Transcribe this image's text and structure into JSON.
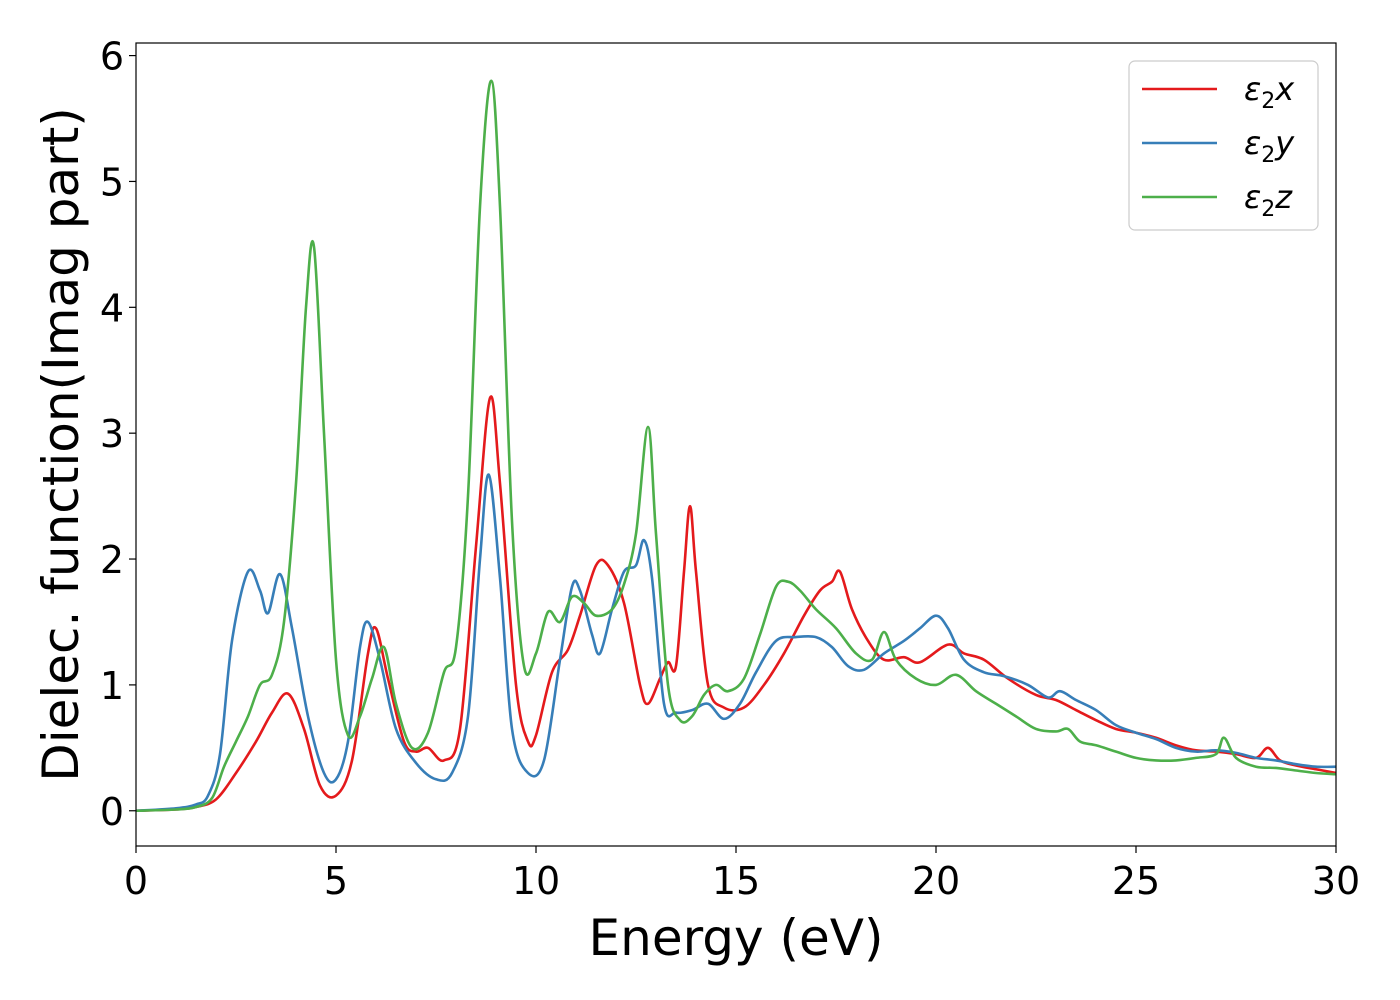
{
  "chart_data": {
    "type": "line",
    "xlabel": "Energy (eV)",
    "ylabel": "Dielec. function(Imag part)",
    "xlim": [
      0,
      30
    ],
    "ylim": [
      -0.28,
      6.1
    ],
    "xticks": [
      0,
      5,
      10,
      15,
      20,
      25,
      30
    ],
    "yticks": [
      0,
      1,
      2,
      3,
      4,
      5,
      6
    ],
    "legend": {
      "position": "top-right"
    },
    "grid": false,
    "series": [
      {
        "name": "ε2x",
        "name_base": "ε",
        "name_sub": "2",
        "name_tail": "x",
        "color": "#e41a1c",
        "points": [
          [
            0,
            0
          ],
          [
            1,
            0.01
          ],
          [
            1.5,
            0.03
          ],
          [
            2,
            0.09
          ],
          [
            2.5,
            0.3
          ],
          [
            3,
            0.55
          ],
          [
            3.4,
            0.78
          ],
          [
            3.8,
            0.93
          ],
          [
            4.2,
            0.65
          ],
          [
            4.6,
            0.2
          ],
          [
            5,
            0.12
          ],
          [
            5.4,
            0.4
          ],
          [
            5.8,
            1.25
          ],
          [
            6,
            1.45
          ],
          [
            6.3,
            1.05
          ],
          [
            6.7,
            0.55
          ],
          [
            7,
            0.47
          ],
          [
            7.3,
            0.5
          ],
          [
            7.7,
            0.4
          ],
          [
            8.1,
            0.65
          ],
          [
            8.5,
            2.1
          ],
          [
            8.85,
            3.28
          ],
          [
            9.1,
            2.6
          ],
          [
            9.5,
            1.0
          ],
          [
            9.8,
            0.55
          ],
          [
            10,
            0.6
          ],
          [
            10.4,
            1.1
          ],
          [
            10.8,
            1.28
          ],
          [
            11.1,
            1.55
          ],
          [
            11.5,
            1.95
          ],
          [
            11.8,
            1.95
          ],
          [
            12.2,
            1.65
          ],
          [
            12.6,
            1.0
          ],
          [
            12.8,
            0.85
          ],
          [
            13.1,
            1.05
          ],
          [
            13.3,
            1.18
          ],
          [
            13.5,
            1.15
          ],
          [
            13.7,
            1.9
          ],
          [
            13.85,
            2.42
          ],
          [
            14,
            1.9
          ],
          [
            14.3,
            1.0
          ],
          [
            14.7,
            0.82
          ],
          [
            15.2,
            0.82
          ],
          [
            15.7,
            1.0
          ],
          [
            16.2,
            1.25
          ],
          [
            16.7,
            1.55
          ],
          [
            17.1,
            1.75
          ],
          [
            17.4,
            1.82
          ],
          [
            17.6,
            1.9
          ],
          [
            17.9,
            1.6
          ],
          [
            18.3,
            1.35
          ],
          [
            18.7,
            1.2
          ],
          [
            19.2,
            1.22
          ],
          [
            19.6,
            1.18
          ],
          [
            20.3,
            1.32
          ],
          [
            20.7,
            1.25
          ],
          [
            21.2,
            1.2
          ],
          [
            21.8,
            1.05
          ],
          [
            22.5,
            0.92
          ],
          [
            23,
            0.88
          ],
          [
            23.5,
            0.8
          ],
          [
            24,
            0.72
          ],
          [
            24.5,
            0.65
          ],
          [
            25,
            0.62
          ],
          [
            25.5,
            0.58
          ],
          [
            26,
            0.52
          ],
          [
            26.5,
            0.48
          ],
          [
            27,
            0.47
          ],
          [
            27.5,
            0.45
          ],
          [
            28,
            0.42
          ],
          [
            28.3,
            0.5
          ],
          [
            28.6,
            0.4
          ],
          [
            29,
            0.36
          ],
          [
            29.5,
            0.33
          ],
          [
            30,
            0.3
          ]
        ]
      },
      {
        "name": "ε2y",
        "name_base": "ε",
        "name_sub": "2",
        "name_tail": "y",
        "color": "#377eb8",
        "points": [
          [
            0,
            0
          ],
          [
            1,
            0.02
          ],
          [
            1.5,
            0.05
          ],
          [
            1.8,
            0.12
          ],
          [
            2.1,
            0.45
          ],
          [
            2.4,
            1.35
          ],
          [
            2.8,
            1.9
          ],
          [
            3.1,
            1.75
          ],
          [
            3.3,
            1.57
          ],
          [
            3.6,
            1.88
          ],
          [
            3.9,
            1.45
          ],
          [
            4.3,
            0.75
          ],
          [
            4.7,
            0.3
          ],
          [
            5,
            0.25
          ],
          [
            5.3,
            0.55
          ],
          [
            5.6,
            1.3
          ],
          [
            5.8,
            1.5
          ],
          [
            6.1,
            1.2
          ],
          [
            6.5,
            0.65
          ],
          [
            7,
            0.38
          ],
          [
            7.5,
            0.25
          ],
          [
            7.9,
            0.3
          ],
          [
            8.3,
            0.75
          ],
          [
            8.6,
            2.0
          ],
          [
            8.82,
            2.67
          ],
          [
            9.1,
            1.85
          ],
          [
            9.4,
            0.65
          ],
          [
            9.8,
            0.3
          ],
          [
            10.2,
            0.4
          ],
          [
            10.6,
            1.2
          ],
          [
            10.9,
            1.78
          ],
          [
            11.1,
            1.75
          ],
          [
            11.4,
            1.4
          ],
          [
            11.6,
            1.25
          ],
          [
            11.9,
            1.6
          ],
          [
            12.2,
            1.9
          ],
          [
            12.5,
            1.95
          ],
          [
            12.7,
            2.15
          ],
          [
            12.9,
            1.85
          ],
          [
            13.2,
            0.85
          ],
          [
            13.5,
            0.78
          ],
          [
            13.9,
            0.8
          ],
          [
            14.3,
            0.85
          ],
          [
            14.7,
            0.73
          ],
          [
            15.1,
            0.85
          ],
          [
            15.5,
            1.1
          ],
          [
            16,
            1.35
          ],
          [
            16.5,
            1.38
          ],
          [
            17,
            1.38
          ],
          [
            17.4,
            1.3
          ],
          [
            17.8,
            1.15
          ],
          [
            18.2,
            1.12
          ],
          [
            18.7,
            1.25
          ],
          [
            19.2,
            1.35
          ],
          [
            19.6,
            1.45
          ],
          [
            20,
            1.55
          ],
          [
            20.3,
            1.45
          ],
          [
            20.7,
            1.2
          ],
          [
            21.2,
            1.1
          ],
          [
            21.7,
            1.07
          ],
          [
            22.3,
            1.0
          ],
          [
            22.8,
            0.9
          ],
          [
            23.1,
            0.95
          ],
          [
            23.5,
            0.88
          ],
          [
            24,
            0.8
          ],
          [
            24.5,
            0.68
          ],
          [
            25,
            0.62
          ],
          [
            25.5,
            0.57
          ],
          [
            26,
            0.5
          ],
          [
            26.5,
            0.47
          ],
          [
            27,
            0.48
          ],
          [
            27.5,
            0.46
          ],
          [
            28,
            0.42
          ],
          [
            28.5,
            0.4
          ],
          [
            29,
            0.37
          ],
          [
            29.5,
            0.35
          ],
          [
            30,
            0.35
          ]
        ]
      },
      {
        "name": "ε2z",
        "name_base": "ε",
        "name_sub": "2",
        "name_tail": "z",
        "color": "#4daf4a",
        "points": [
          [
            0,
            0
          ],
          [
            1,
            0.01
          ],
          [
            1.5,
            0.03
          ],
          [
            1.9,
            0.1
          ],
          [
            2.2,
            0.35
          ],
          [
            2.5,
            0.55
          ],
          [
            2.8,
            0.75
          ],
          [
            3.1,
            1.0
          ],
          [
            3.4,
            1.08
          ],
          [
            3.7,
            1.5
          ],
          [
            4.0,
            2.6
          ],
          [
            4.25,
            4.0
          ],
          [
            4.45,
            4.48
          ],
          [
            4.7,
            3.0
          ],
          [
            5.0,
            1.2
          ],
          [
            5.3,
            0.6
          ],
          [
            5.6,
            0.75
          ],
          [
            5.9,
            1.05
          ],
          [
            6.2,
            1.3
          ],
          [
            6.5,
            0.85
          ],
          [
            6.9,
            0.5
          ],
          [
            7.3,
            0.62
          ],
          [
            7.7,
            1.1
          ],
          [
            8.0,
            1.3
          ],
          [
            8.3,
            2.5
          ],
          [
            8.6,
            4.8
          ],
          [
            8.88,
            5.8
          ],
          [
            9.1,
            4.8
          ],
          [
            9.4,
            2.3
          ],
          [
            9.7,
            1.15
          ],
          [
            10.0,
            1.25
          ],
          [
            10.3,
            1.58
          ],
          [
            10.6,
            1.5
          ],
          [
            10.9,
            1.7
          ],
          [
            11.2,
            1.65
          ],
          [
            11.5,
            1.55
          ],
          [
            11.9,
            1.6
          ],
          [
            12.2,
            1.8
          ],
          [
            12.5,
            2.2
          ],
          [
            12.8,
            3.05
          ],
          [
            13.0,
            2.2
          ],
          [
            13.3,
            1.0
          ],
          [
            13.6,
            0.72
          ],
          [
            13.9,
            0.75
          ],
          [
            14.2,
            0.92
          ],
          [
            14.5,
            1.0
          ],
          [
            14.8,
            0.95
          ],
          [
            15.2,
            1.05
          ],
          [
            15.6,
            1.4
          ],
          [
            16.0,
            1.78
          ],
          [
            16.3,
            1.82
          ],
          [
            16.6,
            1.75
          ],
          [
            17.0,
            1.6
          ],
          [
            17.5,
            1.45
          ],
          [
            18.0,
            1.25
          ],
          [
            18.4,
            1.2
          ],
          [
            18.7,
            1.42
          ],
          [
            19.0,
            1.2
          ],
          [
            19.5,
            1.05
          ],
          [
            20.0,
            1.0
          ],
          [
            20.5,
            1.08
          ],
          [
            21.0,
            0.95
          ],
          [
            21.5,
            0.85
          ],
          [
            22.0,
            0.75
          ],
          [
            22.5,
            0.65
          ],
          [
            23.0,
            0.63
          ],
          [
            23.3,
            0.65
          ],
          [
            23.6,
            0.55
          ],
          [
            24.0,
            0.52
          ],
          [
            24.5,
            0.47
          ],
          [
            25.0,
            0.42
          ],
          [
            25.5,
            0.4
          ],
          [
            26.0,
            0.4
          ],
          [
            26.5,
            0.42
          ],
          [
            27.0,
            0.45
          ],
          [
            27.2,
            0.58
          ],
          [
            27.5,
            0.42
          ],
          [
            28.0,
            0.35
          ],
          [
            28.5,
            0.34
          ],
          [
            29.0,
            0.32
          ],
          [
            29.5,
            0.3
          ],
          [
            30,
            0.29
          ]
        ]
      }
    ]
  }
}
